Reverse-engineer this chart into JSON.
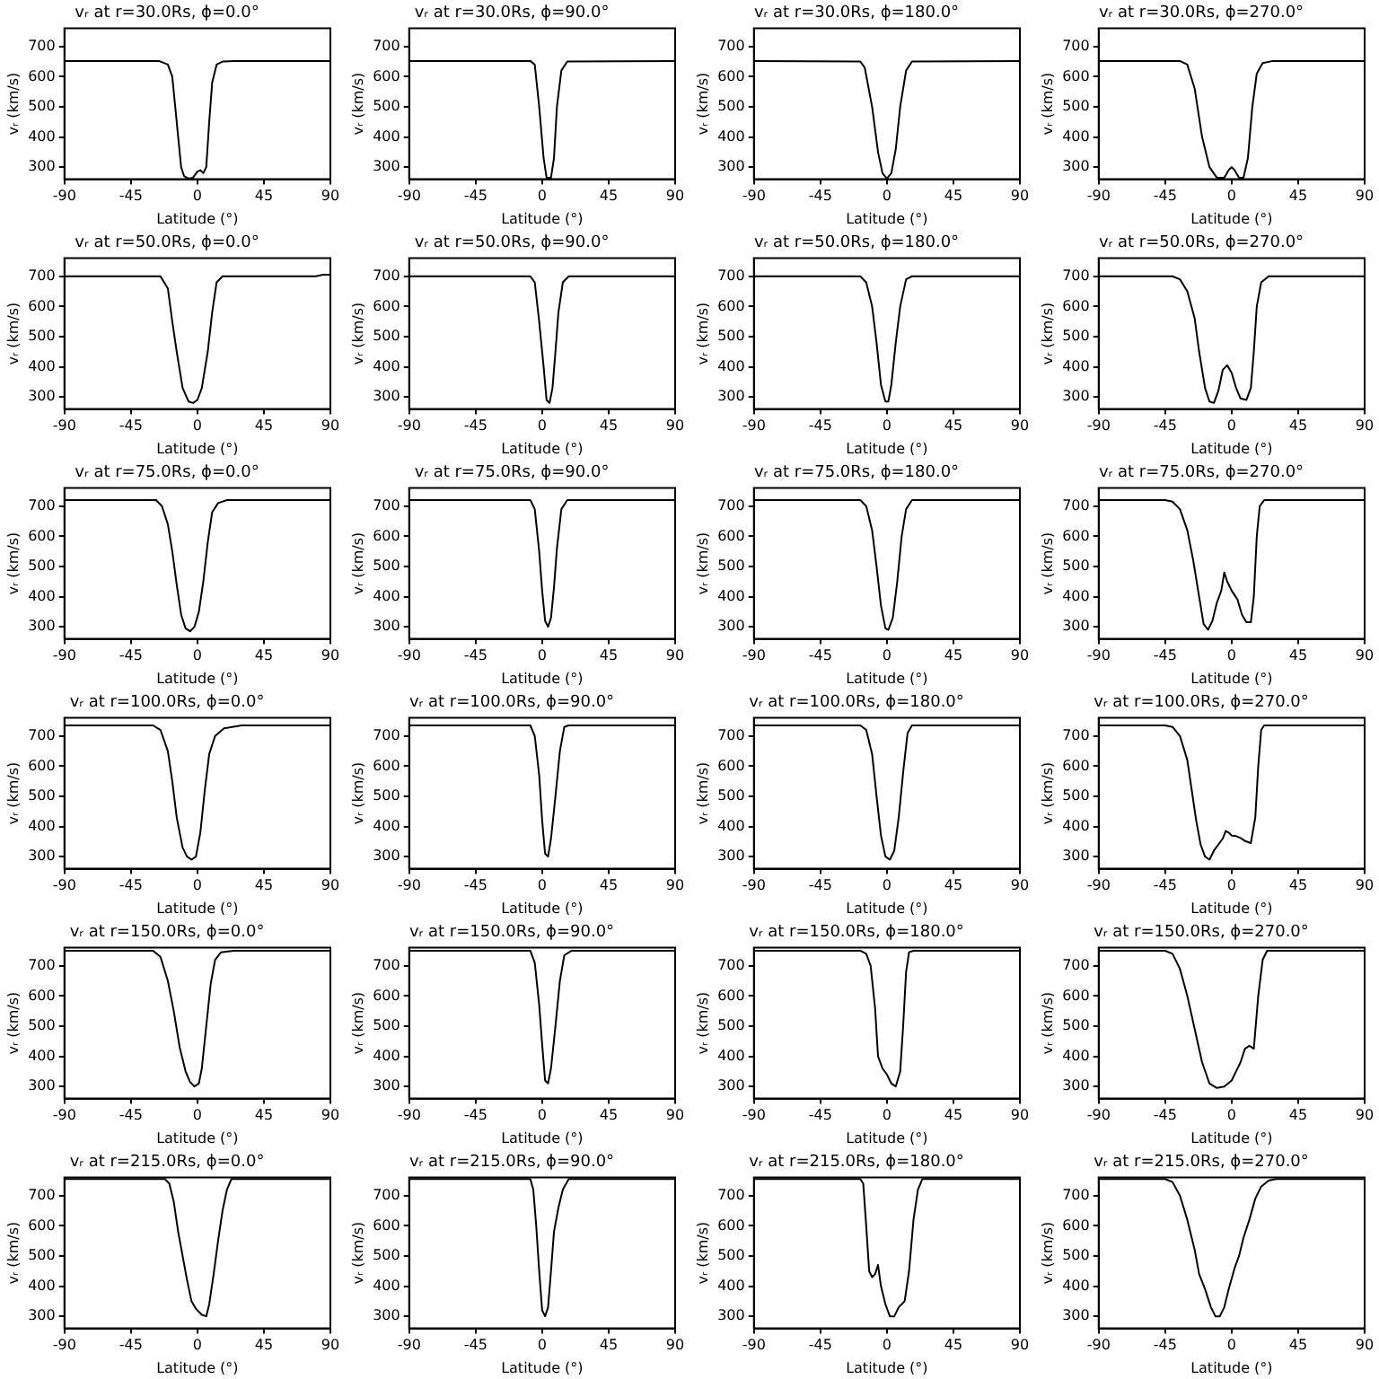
{
  "chart_data": [
    {
      "type": "line",
      "title": "vᵣ at r=30.0Rs, ϕ=0.0°",
      "xlabel": "Latitude (°)",
      "ylabel": "vᵣ (km/s)",
      "color": "#000000",
      "xlim": [
        -90,
        90
      ],
      "ylim": [
        260,
        760
      ],
      "xticks": [
        -90,
        -45,
        0,
        45,
        90
      ],
      "yticks": [
        300,
        400,
        500,
        600,
        700
      ],
      "x": [
        -90,
        -26,
        -20,
        -17,
        -15,
        -13,
        -11,
        -9,
        -6,
        -3,
        0,
        2,
        4,
        6,
        8,
        10,
        13,
        17,
        25,
        90
      ],
      "values": [
        652,
        652,
        640,
        600,
        500,
        400,
        300,
        270,
        262,
        265,
        285,
        290,
        280,
        300,
        450,
        580,
        640,
        650,
        652,
        652
      ]
    },
    {
      "type": "line",
      "title": "vᵣ at r=30.0Rs, ϕ=90.0°",
      "xlabel": "Latitude (°)",
      "ylabel": "vᵣ (km/s)",
      "color": "#000000",
      "xlim": [
        -90,
        90
      ],
      "ylim": [
        260,
        760
      ],
      "xticks": [
        -90,
        -45,
        0,
        45,
        90
      ],
      "yticks": [
        300,
        400,
        500,
        600,
        700
      ],
      "x": [
        -90,
        -8,
        -5,
        -2,
        1,
        3,
        6,
        8,
        10,
        13,
        17,
        90
      ],
      "values": [
        652,
        652,
        640,
        500,
        330,
        265,
        265,
        330,
        500,
        620,
        650,
        652
      ]
    },
    {
      "type": "line",
      "title": "vᵣ at r=30.0Rs, ϕ=180.0°",
      "xlabel": "Latitude (°)",
      "ylabel": "vᵣ (km/s)",
      "color": "#000000",
      "xlim": [
        -90,
        90
      ],
      "ylim": [
        260,
        760
      ],
      "xticks": [
        -90,
        -45,
        0,
        45,
        90
      ],
      "yticks": [
        300,
        400,
        500,
        600,
        700
      ],
      "x": [
        -90,
        -18,
        -15,
        -10,
        -6,
        -3,
        0,
        3,
        6,
        9,
        13,
        17,
        90
      ],
      "values": [
        652,
        650,
        630,
        500,
        350,
        280,
        262,
        280,
        360,
        500,
        620,
        650,
        652
      ]
    },
    {
      "type": "line",
      "title": "vᵣ at r=30.0Rs, ϕ=270.0°",
      "xlabel": "Latitude (°)",
      "ylabel": "vᵣ (km/s)",
      "color": "#000000",
      "xlim": [
        -90,
        90
      ],
      "ylim": [
        260,
        760
      ],
      "xticks": [
        -90,
        -45,
        0,
        45,
        90
      ],
      "yticks": [
        300,
        400,
        500,
        600,
        700
      ],
      "x": [
        -90,
        -35,
        -30,
        -25,
        -20,
        -15,
        -10,
        -5,
        -2,
        0,
        2,
        5,
        8,
        11,
        14,
        17,
        21,
        28,
        90
      ],
      "values": [
        652,
        652,
        640,
        560,
        400,
        300,
        265,
        265,
        290,
        300,
        290,
        265,
        265,
        330,
        500,
        610,
        645,
        652,
        652
      ]
    },
    {
      "type": "line",
      "title": "vᵣ at r=50.0Rs, ϕ=0.0°",
      "xlabel": "Latitude (°)",
      "ylabel": "vᵣ (km/s)",
      "color": "#000000",
      "xlim": [
        -90,
        90
      ],
      "ylim": [
        260,
        760
      ],
      "xticks": [
        -90,
        -45,
        0,
        45,
        90
      ],
      "yticks": [
        300,
        400,
        500,
        600,
        700
      ],
      "x": [
        -90,
        -25,
        -20,
        -17,
        -14,
        -10,
        -6,
        -3,
        0,
        3,
        7,
        10,
        13,
        17,
        80,
        85,
        90
      ],
      "values": [
        700,
        700,
        660,
        550,
        450,
        330,
        285,
        280,
        290,
        330,
        450,
        580,
        680,
        700,
        700,
        705,
        705
      ]
    },
    {
      "type": "line",
      "title": "vᵣ at r=50.0Rs, ϕ=90.0°",
      "xlabel": "Latitude (°)",
      "ylabel": "vᵣ (km/s)",
      "color": "#000000",
      "xlim": [
        -90,
        90
      ],
      "ylim": [
        260,
        760
      ],
      "xticks": [
        -90,
        -45,
        0,
        45,
        90
      ],
      "yticks": [
        300,
        400,
        500,
        600,
        700
      ],
      "x": [
        -90,
        -8,
        -5,
        -2,
        1,
        3,
        5,
        7,
        9,
        11,
        14,
        18,
        90
      ],
      "values": [
        700,
        700,
        680,
        550,
        400,
        290,
        280,
        330,
        450,
        580,
        680,
        700,
        700
      ]
    },
    {
      "type": "line",
      "title": "vᵣ at r=50.0Rs, ϕ=180.0°",
      "xlabel": "Latitude (°)",
      "ylabel": "vᵣ (km/s)",
      "color": "#000000",
      "xlim": [
        -90,
        90
      ],
      "ylim": [
        260,
        760
      ],
      "xticks": [
        -90,
        -45,
        0,
        45,
        90
      ],
      "yticks": [
        300,
        400,
        500,
        600,
        700
      ],
      "x": [
        -90,
        -18,
        -14,
        -10,
        -7,
        -4,
        -1,
        1,
        3,
        6,
        9,
        13,
        17,
        90
      ],
      "values": [
        700,
        700,
        680,
        600,
        480,
        340,
        285,
        285,
        340,
        480,
        600,
        690,
        700,
        700
      ]
    },
    {
      "type": "line",
      "title": "vᵣ at r=50.0Rs, ϕ=270.0°",
      "xlabel": "Latitude (°)",
      "ylabel": "vᵣ (km/s)",
      "color": "#000000",
      "xlim": [
        -90,
        90
      ],
      "ylim": [
        260,
        760
      ],
      "xticks": [
        -90,
        -45,
        0,
        45,
        90
      ],
      "yticks": [
        300,
        400,
        500,
        600,
        700
      ],
      "x": [
        -90,
        -40,
        -35,
        -30,
        -25,
        -22,
        -18,
        -15,
        -12,
        -9,
        -6,
        -3,
        0,
        3,
        6,
        10,
        13,
        15,
        17,
        20,
        25,
        90
      ],
      "values": [
        700,
        700,
        690,
        650,
        560,
        450,
        330,
        285,
        280,
        320,
        390,
        405,
        380,
        330,
        295,
        290,
        330,
        450,
        600,
        680,
        700,
        700
      ]
    },
    {
      "type": "line",
      "title": "vᵣ at r=75.0Rs, ϕ=0.0°",
      "xlabel": "Latitude (°)",
      "ylabel": "vᵣ (km/s)",
      "color": "#000000",
      "xlim": [
        -90,
        90
      ],
      "ylim": [
        260,
        760
      ],
      "xticks": [
        -90,
        -45,
        0,
        45,
        90
      ],
      "yticks": [
        300,
        400,
        500,
        600,
        700
      ],
      "x": [
        -90,
        -28,
        -24,
        -20,
        -17,
        -14,
        -11,
        -8,
        -5,
        -2,
        1,
        4,
        7,
        10,
        14,
        20,
        90
      ],
      "values": [
        720,
        720,
        700,
        640,
        550,
        440,
        340,
        295,
        285,
        300,
        350,
        450,
        580,
        680,
        710,
        720,
        720
      ]
    },
    {
      "type": "line",
      "title": "vᵣ at r=75.0Rs, ϕ=90.0°",
      "xlabel": "Latitude (°)",
      "ylabel": "vᵣ (km/s)",
      "color": "#000000",
      "xlim": [
        -90,
        90
      ],
      "ylim": [
        260,
        760
      ],
      "xticks": [
        -90,
        -45,
        0,
        45,
        90
      ],
      "yticks": [
        300,
        400,
        500,
        600,
        700
      ],
      "x": [
        -90,
        -8,
        -5,
        -2,
        0,
        2,
        4,
        6,
        8,
        10,
        13,
        17,
        90
      ],
      "values": [
        720,
        720,
        690,
        550,
        420,
        320,
        300,
        330,
        430,
        560,
        690,
        720,
        720
      ]
    },
    {
      "type": "line",
      "title": "vᵣ at r=75.0Rs, ϕ=180.0°",
      "xlabel": "Latitude (°)",
      "ylabel": "vᵣ (km/s)",
      "color": "#000000",
      "xlim": [
        -90,
        90
      ],
      "ylim": [
        260,
        760
      ],
      "xticks": [
        -90,
        -45,
        0,
        45,
        90
      ],
      "yticks": [
        300,
        400,
        500,
        600,
        700
      ],
      "x": [
        -90,
        -18,
        -14,
        -10,
        -7,
        -4,
        -1,
        1,
        4,
        7,
        10,
        13,
        17,
        90
      ],
      "values": [
        720,
        720,
        700,
        620,
        500,
        370,
        295,
        290,
        330,
        450,
        600,
        690,
        720,
        720
      ]
    },
    {
      "type": "line",
      "title": "vᵣ at r=75.0Rs, ϕ=270.0°",
      "xlabel": "Latitude (°)",
      "ylabel": "vᵣ (km/s)",
      "color": "#000000",
      "xlim": [
        -90,
        90
      ],
      "ylim": [
        260,
        760
      ],
      "xticks": [
        -90,
        -45,
        0,
        45,
        90
      ],
      "yticks": [
        300,
        400,
        500,
        600,
        700
      ],
      "x": [
        -90,
        -45,
        -40,
        -35,
        -30,
        -26,
        -22,
        -19,
        -16,
        -13,
        -10,
        -7,
        -5,
        -3,
        0,
        4,
        7,
        10,
        13,
        15,
        17,
        19,
        22,
        90
      ],
      "values": [
        720,
        720,
        715,
        690,
        620,
        520,
        400,
        310,
        290,
        320,
        380,
        420,
        480,
        450,
        420,
        390,
        340,
        315,
        315,
        400,
        600,
        700,
        720,
        720
      ]
    },
    {
      "type": "line",
      "title": "vᵣ at r=100.0Rs, ϕ=0.0°",
      "xlabel": "Latitude (°)",
      "ylabel": "vᵣ (km/s)",
      "color": "#000000",
      "xlim": [
        -90,
        90
      ],
      "ylim": [
        260,
        760
      ],
      "xticks": [
        -90,
        -45,
        0,
        45,
        90
      ],
      "yticks": [
        300,
        400,
        500,
        600,
        700
      ],
      "x": [
        -90,
        -30,
        -25,
        -20,
        -17,
        -14,
        -10,
        -7,
        -4,
        -1,
        2,
        5,
        8,
        12,
        18,
        30,
        90
      ],
      "values": [
        735,
        735,
        720,
        650,
        550,
        430,
        330,
        300,
        290,
        300,
        380,
        520,
        640,
        700,
        725,
        735,
        735
      ]
    },
    {
      "type": "line",
      "title": "vᵣ at r=100.0Rs, ϕ=90.0°",
      "xlabel": "Latitude (°)",
      "ylabel": "vᵣ (km/s)",
      "color": "#000000",
      "xlim": [
        -90,
        90
      ],
      "ylim": [
        260,
        760
      ],
      "xticks": [
        -90,
        -45,
        0,
        45,
        90
      ],
      "yticks": [
        300,
        400,
        500,
        600,
        700
      ],
      "x": [
        -90,
        -8,
        -5,
        -2,
        0,
        2,
        4,
        6,
        9,
        12,
        15,
        18,
        90
      ],
      "values": [
        735,
        735,
        700,
        570,
        420,
        310,
        300,
        360,
        500,
        650,
        730,
        735,
        735
      ]
    },
    {
      "type": "line",
      "title": "vᵣ at r=100.0Rs, ϕ=180.0°",
      "xlabel": "Latitude (°)",
      "ylabel": "vᵣ (km/s)",
      "color": "#000000",
      "xlim": [
        -90,
        90
      ],
      "ylim": [
        260,
        760
      ],
      "xticks": [
        -90,
        -45,
        0,
        45,
        90
      ],
      "yticks": [
        300,
        400,
        500,
        600,
        700
      ],
      "x": [
        -90,
        -18,
        -14,
        -10,
        -7,
        -4,
        -1,
        2,
        5,
        8,
        11,
        14,
        17,
        90
      ],
      "values": [
        735,
        735,
        720,
        640,
        500,
        370,
        300,
        290,
        320,
        430,
        580,
        710,
        735,
        735
      ]
    },
    {
      "type": "line",
      "title": "vᵣ at r=100.0Rs, ϕ=270.0°",
      "xlabel": "Latitude (°)",
      "ylabel": "vᵣ (km/s)",
      "color": "#000000",
      "xlim": [
        -90,
        90
      ],
      "ylim": [
        260,
        760
      ],
      "xticks": [
        -90,
        -45,
        0,
        45,
        90
      ],
      "yticks": [
        300,
        400,
        500,
        600,
        700
      ],
      "x": [
        -90,
        -45,
        -40,
        -35,
        -30,
        -27,
        -24,
        -21,
        -18,
        -15,
        -12,
        -9,
        -6,
        -4,
        -2,
        0,
        3,
        6,
        9,
        13,
        16,
        18,
        20,
        22,
        90
      ],
      "values": [
        735,
        735,
        730,
        700,
        620,
        520,
        420,
        340,
        300,
        290,
        320,
        340,
        360,
        385,
        380,
        370,
        368,
        362,
        352,
        345,
        430,
        600,
        720,
        735,
        735
      ]
    },
    {
      "type": "line",
      "title": "vᵣ at r=150.0Rs, ϕ=0.0°",
      "xlabel": "Latitude (°)",
      "ylabel": "vᵣ (km/s)",
      "color": "#000000",
      "xlim": [
        -90,
        90
      ],
      "ylim": [
        260,
        760
      ],
      "xticks": [
        -90,
        -45,
        0,
        45,
        90
      ],
      "yticks": [
        300,
        400,
        500,
        600,
        700
      ],
      "x": [
        -90,
        -30,
        -25,
        -20,
        -16,
        -12,
        -8,
        -5,
        -2,
        1,
        3,
        6,
        9,
        12,
        16,
        25,
        90
      ],
      "values": [
        750,
        750,
        730,
        650,
        550,
        430,
        350,
        315,
        300,
        310,
        360,
        500,
        640,
        720,
        745,
        750,
        750
      ]
    },
    {
      "type": "line",
      "title": "vᵣ at r=150.0Rs, ϕ=90.0°",
      "xlabel": "Latitude (°)",
      "ylabel": "vᵣ (km/s)",
      "color": "#000000",
      "xlim": [
        -90,
        90
      ],
      "ylim": [
        260,
        760
      ],
      "xticks": [
        -90,
        -45,
        0,
        45,
        90
      ],
      "yticks": [
        300,
        400,
        500,
        600,
        700
      ],
      "x": [
        -90,
        -8,
        -5,
        -2,
        0,
        2,
        4,
        6,
        9,
        12,
        15,
        20,
        90
      ],
      "values": [
        750,
        750,
        710,
        570,
        440,
        320,
        310,
        360,
        500,
        650,
        735,
        750,
        750
      ]
    },
    {
      "type": "line",
      "title": "vᵣ at r=150.0Rs, ϕ=180.0°",
      "xlabel": "Latitude (°)",
      "ylabel": "vᵣ (km/s)",
      "color": "#000000",
      "xlim": [
        -90,
        90
      ],
      "ylim": [
        260,
        760
      ],
      "xticks": [
        -90,
        -45,
        0,
        45,
        90
      ],
      "yticks": [
        300,
        400,
        500,
        600,
        700
      ],
      "x": [
        -90,
        -18,
        -14,
        -11,
        -8,
        -6,
        -3,
        0,
        3,
        6,
        9,
        11,
        13,
        15,
        18,
        90
      ],
      "values": [
        750,
        750,
        740,
        700,
        560,
        400,
        360,
        340,
        310,
        300,
        350,
        500,
        680,
        745,
        750,
        750
      ]
    },
    {
      "type": "line",
      "title": "vᵣ at r=150.0Rs, ϕ=270.0°",
      "xlabel": "Latitude (°)",
      "ylabel": "vᵣ (km/s)",
      "color": "#000000",
      "xlim": [
        -90,
        90
      ],
      "ylim": [
        260,
        760
      ],
      "xticks": [
        -90,
        -45,
        0,
        45,
        90
      ],
      "yticks": [
        300,
        400,
        500,
        600,
        700
      ],
      "x": [
        -90,
        -45,
        -40,
        -35,
        -30,
        -25,
        -20,
        -15,
        -10,
        -5,
        0,
        3,
        6,
        9,
        12,
        15,
        18,
        21,
        24,
        90
      ],
      "values": [
        750,
        750,
        740,
        690,
        600,
        490,
        380,
        310,
        295,
        300,
        320,
        350,
        380,
        425,
        435,
        425,
        600,
        720,
        750,
        750
      ]
    },
    {
      "type": "line",
      "title": "vᵣ at r=215.0Rs, ϕ=0.0°",
      "xlabel": "Latitude (°)",
      "ylabel": "vᵣ (km/s)",
      "color": "#000000",
      "xlim": [
        -90,
        90
      ],
      "ylim": [
        260,
        760
      ],
      "xticks": [
        -90,
        -45,
        0,
        45,
        90
      ],
      "yticks": [
        300,
        400,
        500,
        600,
        700
      ],
      "x": [
        -90,
        -22,
        -19,
        -16,
        -13,
        -10,
        -7,
        -4,
        -1,
        3,
        6,
        8,
        11,
        14,
        17,
        20,
        23,
        90
      ],
      "values": [
        755,
        755,
        740,
        680,
        580,
        500,
        420,
        350,
        325,
        305,
        300,
        340,
        440,
        550,
        650,
        720,
        755,
        755
      ]
    },
    {
      "type": "line",
      "title": "vᵣ at r=215.0Rs, ϕ=90.0°",
      "xlabel": "Latitude (°)",
      "ylabel": "vᵣ (km/s)",
      "color": "#000000",
      "xlim": [
        -90,
        90
      ],
      "ylim": [
        260,
        760
      ],
      "xticks": [
        -90,
        -45,
        0,
        45,
        90
      ],
      "yticks": [
        300,
        400,
        500,
        600,
        700
      ],
      "x": [
        -90,
        -8,
        -6,
        -4,
        -2,
        0,
        2,
        4,
        6,
        8,
        11,
        14,
        18,
        90
      ],
      "values": [
        755,
        755,
        720,
        600,
        450,
        320,
        300,
        330,
        450,
        580,
        660,
        720,
        755,
        755
      ]
    },
    {
      "type": "line",
      "title": "vᵣ at r=215.0Rs, ϕ=180.0°",
      "xlabel": "Latitude (°)",
      "ylabel": "vᵣ (km/s)",
      "color": "#000000",
      "xlim": [
        -90,
        90
      ],
      "ylim": [
        260,
        760
      ],
      "xticks": [
        -90,
        -45,
        0,
        45,
        90
      ],
      "yticks": [
        300,
        400,
        500,
        600,
        700
      ],
      "x": [
        -90,
        -18,
        -16,
        -14,
        -12,
        -10,
        -8,
        -6,
        -4,
        -1,
        2,
        5,
        8,
        12,
        15,
        18,
        21,
        24,
        90
      ],
      "values": [
        755,
        755,
        740,
        600,
        450,
        430,
        440,
        470,
        400,
        340,
        300,
        300,
        330,
        350,
        450,
        620,
        720,
        755,
        755
      ]
    },
    {
      "type": "line",
      "title": "vᵣ at r=215.0Rs, ϕ=270.0°",
      "xlabel": "Latitude (°)",
      "ylabel": "vᵣ (km/s)",
      "color": "#000000",
      "xlim": [
        -90,
        90
      ],
      "ylim": [
        260,
        760
      ],
      "xticks": [
        -90,
        -45,
        0,
        45,
        90
      ],
      "yticks": [
        300,
        400,
        500,
        600,
        700
      ],
      "x": [
        -90,
        -45,
        -40,
        -35,
        -30,
        -25,
        -22,
        -18,
        -14,
        -11,
        -8,
        -5,
        -2,
        2,
        5,
        8,
        12,
        16,
        20,
        25,
        30,
        90
      ],
      "values": [
        755,
        755,
        745,
        700,
        620,
        520,
        440,
        390,
        330,
        300,
        300,
        330,
        390,
        460,
        500,
        560,
        620,
        690,
        730,
        750,
        755,
        755
      ]
    }
  ]
}
